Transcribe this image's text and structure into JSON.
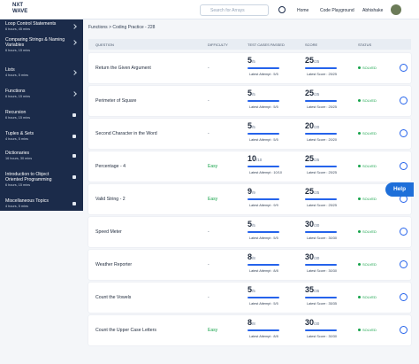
{
  "header": {
    "logo_top": "NXT",
    "logo_bottom": "WAVE",
    "search_placeholder": "Search for Arrays",
    "nav": [
      "Home",
      "Code Playground"
    ],
    "user": "Abhishake"
  },
  "sidebar": [
    {
      "title": "Loop Control Statements",
      "meta": "6 hours, 45 mins",
      "locked": false
    },
    {
      "title": "Comparing Strings & Naming Variables",
      "meta": "6 hours, 15 mins",
      "locked": false
    },
    {
      "title": "Lists",
      "meta": "4 hours, 5 mins",
      "locked": false
    },
    {
      "title": "Functions",
      "meta": "6 hours, 15 mins",
      "locked": false
    },
    {
      "title": "Recursion",
      "meta": "6 hours, 15 mins",
      "locked": true
    },
    {
      "title": "Tuples & Sets",
      "meta": "4 hours, 5 mins",
      "locked": true
    },
    {
      "title": "Dictionaries",
      "meta": "16 hours, 30 mins",
      "locked": true
    },
    {
      "title": "Introduction to Object Oriented Programming",
      "meta": "6 hours, 15 mins",
      "locked": true
    },
    {
      "title": "Miscellaneous Topics",
      "meta": "4 hours, 5 mins",
      "locked": true
    }
  ],
  "breadcrumb": "Functions > Coding Practice - 228",
  "table": {
    "headers": [
      "QUESTION",
      "DIFFICULTY",
      "TEST CASES PASSED",
      "SCORE",
      "STATUS"
    ],
    "rows": [
      {
        "question": "Return the Given Argument",
        "difficulty": "-",
        "passed": "5",
        "passed_of": "/5",
        "latest_attempt": "Latest Attempt : 5/5",
        "score": "25",
        "score_of": "/25",
        "latest_score": "Latest Score : 25/25",
        "status": "SOLVED"
      },
      {
        "question": "Perimeter of Square",
        "difficulty": "-",
        "passed": "5",
        "passed_of": "/5",
        "latest_attempt": "Latest Attempt : 5/5",
        "score": "25",
        "score_of": "/25",
        "latest_score": "Latest Score : 25/25",
        "status": "SOLVED"
      },
      {
        "question": "Second Character in the Word",
        "difficulty": "-",
        "passed": "5",
        "passed_of": "/5",
        "latest_attempt": "Latest Attempt : 5/5",
        "score": "20",
        "score_of": "/20",
        "latest_score": "Latest Score : 20/20",
        "status": "SOLVED"
      },
      {
        "question": "Percentage - 4",
        "difficulty": "Easy",
        "passed": "10",
        "passed_of": "/10",
        "latest_attempt": "Latest Attempt : 10/10",
        "score": "25",
        "score_of": "/25",
        "latest_score": "Latest Score : 25/25",
        "status": "SOLVED"
      },
      {
        "question": "Valid String - 2",
        "difficulty": "Easy",
        "passed": "9",
        "passed_of": "/9",
        "latest_attempt": "Latest Attempt : 9/9",
        "score": "25",
        "score_of": "/25",
        "latest_score": "Latest Score : 25/25",
        "status": "SOLVED"
      },
      {
        "question": "Speed Meter",
        "difficulty": "-",
        "passed": "5",
        "passed_of": "/5",
        "latest_attempt": "Latest Attempt : 5/5",
        "score": "30",
        "score_of": "/30",
        "latest_score": "Latest Score : 30/30",
        "status": "SOLVED"
      },
      {
        "question": "Weather Reporter",
        "difficulty": "-",
        "passed": "8",
        "passed_of": "/8",
        "latest_attempt": "Latest Attempt : 8/8",
        "score": "30",
        "score_of": "/30",
        "latest_score": "Latest Score : 30/30",
        "status": "SOLVED"
      },
      {
        "question": "Count the Vowels",
        "difficulty": "-",
        "passed": "5",
        "passed_of": "/5",
        "latest_attempt": "Latest Attempt : 5/5",
        "score": "35",
        "score_of": "/35",
        "latest_score": "Latest Score : 35/35",
        "status": "SOLVED"
      },
      {
        "question": "Count the Upper Case Letters",
        "difficulty": "Easy",
        "passed": "8",
        "passed_of": "/8",
        "latest_attempt": "Latest Attempt : 8/8",
        "score": "30",
        "score_of": "/30",
        "latest_score": "Latest Score : 30/30",
        "status": "SOLVED"
      }
    ]
  },
  "help": "Help"
}
